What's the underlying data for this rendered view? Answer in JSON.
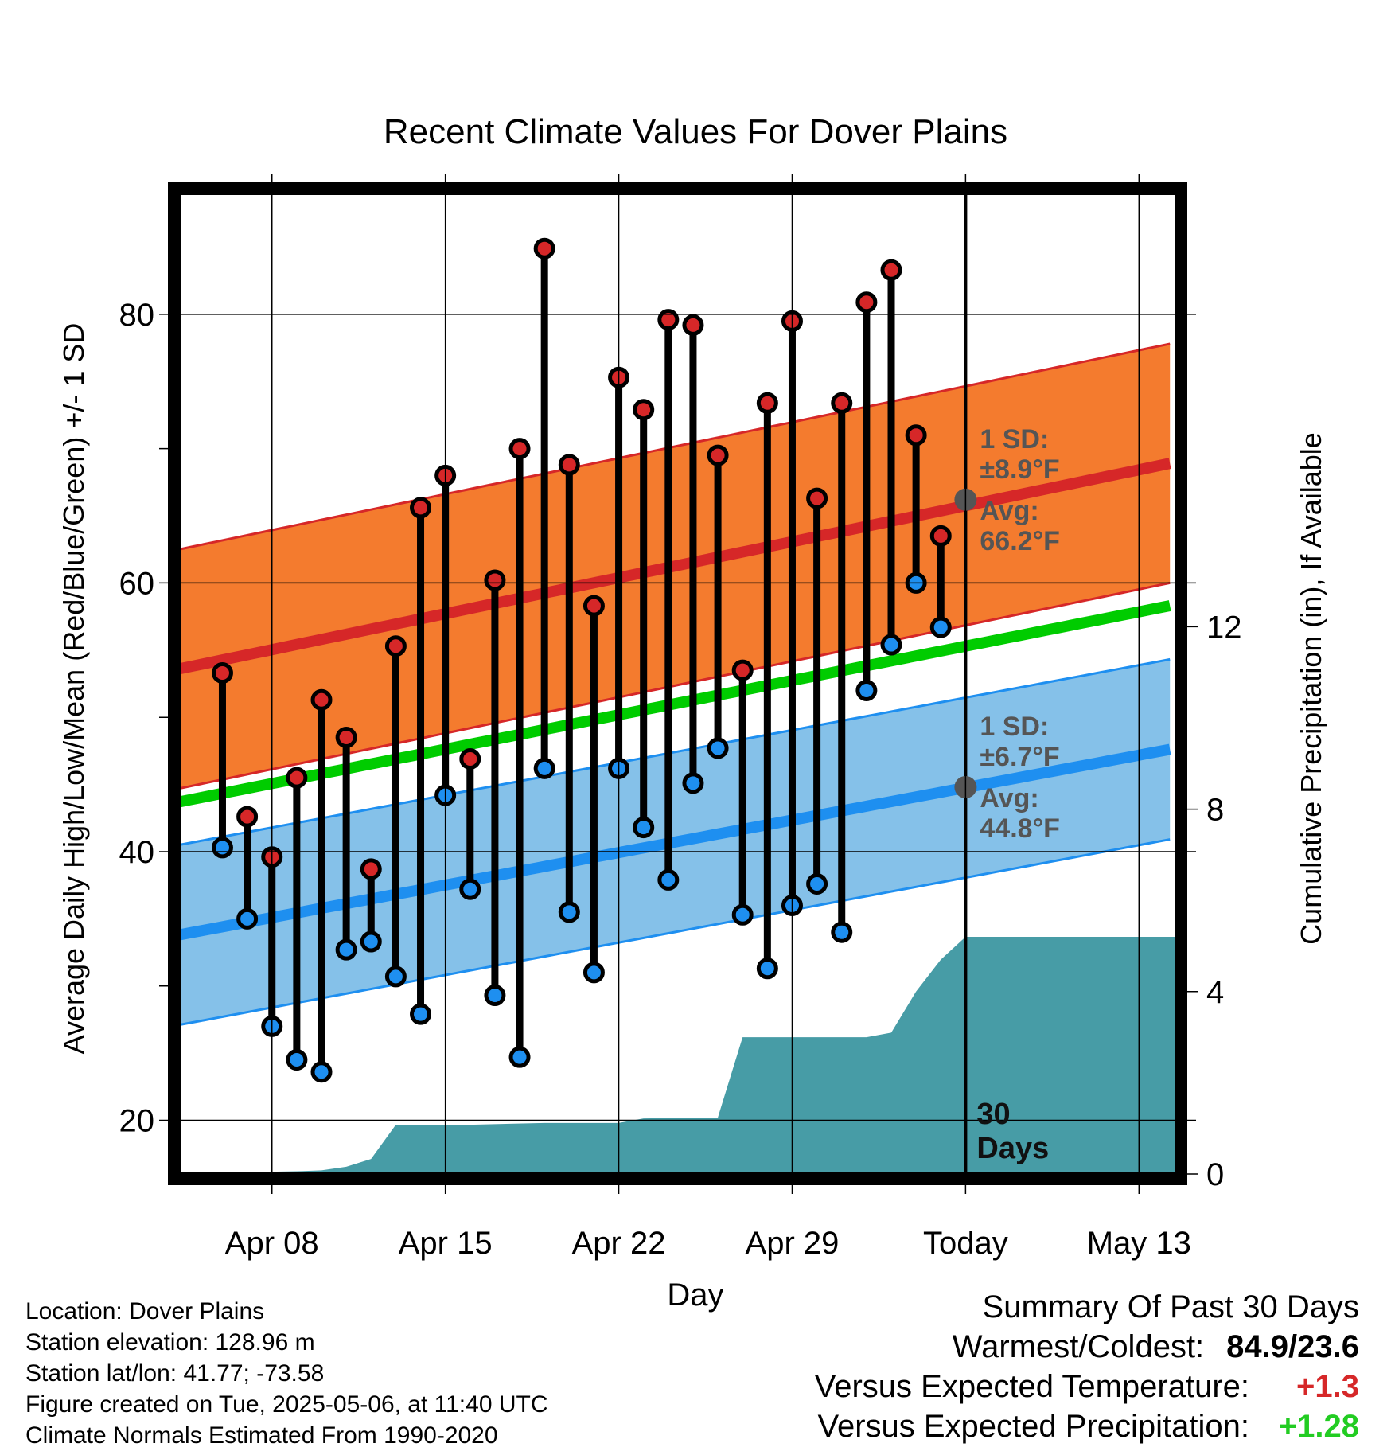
{
  "chart_data": {
    "type": "line",
    "title": "Recent Climate Values For Dover Plains",
    "xlabel": "Day",
    "ylabel": "Average Daily High/Low/Mean (Red/Blue/Green) +/- 1 SD",
    "y2label": "Cumulative Precipitation (in), If Available",
    "x_tick_labels": [
      "Apr 08",
      "Apr 15",
      "Apr 22",
      "Apr 29",
      "Today",
      "May 13"
    ],
    "x_tick_days": [
      2,
      9,
      16,
      23,
      30,
      37
    ],
    "x_range_days": [
      -1.75,
      38.5
    ],
    "today_day": 30,
    "ylim": [
      16,
      89
    ],
    "y_ticks": [
      20,
      40,
      60,
      80
    ],
    "y_minor_ticks": [
      30,
      50,
      70
    ],
    "y2lim": [
      0,
      21.5
    ],
    "y2_ticks": [
      0,
      4,
      8,
      12
    ],
    "grid": true,
    "daily_high": [
      53.3,
      42.6,
      39.6,
      45.5,
      51.3,
      48.5,
      38.7,
      55.3,
      65.6,
      68.0,
      46.9,
      60.2,
      70.0,
      84.9,
      68.8,
      58.3,
      75.3,
      72.9,
      79.6,
      79.2,
      69.5,
      53.5,
      73.4,
      79.5,
      66.3,
      73.4,
      80.9,
      83.3,
      71.0,
      63.5
    ],
    "daily_low": [
      40.3,
      35.0,
      27.0,
      24.5,
      23.6,
      32.7,
      33.3,
      30.7,
      27.9,
      44.2,
      37.2,
      29.3,
      24.7,
      46.2,
      35.5,
      31.0,
      46.2,
      41.8,
      37.9,
      45.1,
      47.7,
      35.3,
      31.3,
      36.0,
      37.6,
      34.0,
      52.0,
      55.4,
      60.0,
      56.7
    ],
    "normal_high": {
      "start": 53.6,
      "end": 69.0,
      "sd": 8.9
    },
    "normal_low": {
      "start": 33.8,
      "end": 47.7,
      "sd": 6.7
    },
    "normal_mean": {
      "start": 43.7,
      "end": 58.4
    },
    "cumulative_precip": [
      [
        -1.75,
        0.0
      ],
      [
        2.0,
        0.05
      ],
      [
        3.0,
        0.06
      ],
      [
        4.0,
        0.08
      ],
      [
        5.0,
        0.16
      ],
      [
        6.0,
        0.33
      ],
      [
        7.0,
        1.08
      ],
      [
        10.0,
        1.08
      ],
      [
        13.0,
        1.12
      ],
      [
        16.0,
        1.12
      ],
      [
        17.0,
        1.22
      ],
      [
        20.0,
        1.24
      ],
      [
        21.0,
        3.0
      ],
      [
        24.0,
        3.0
      ],
      [
        26.0,
        3.0
      ],
      [
        27.0,
        3.1
      ],
      [
        28.0,
        4.0
      ],
      [
        29.0,
        4.7
      ],
      [
        30.0,
        5.2
      ],
      [
        38.5,
        5.2
      ]
    ],
    "annotations": {
      "high_sd_line1": "1 SD:",
      "high_sd_line2": "±8.9°F",
      "high_avg_line1": "Avg:",
      "high_avg_line2": "66.2°F",
      "low_sd_line1": "1 SD:",
      "low_sd_line2": "±6.7°F",
      "low_avg_line1": "Avg:",
      "low_avg_line2": "44.8°F",
      "today_avg_high": 66.2,
      "today_avg_low": 44.8,
      "days_line1": "30",
      "days_line2": "Days"
    },
    "colors": {
      "high_band": "#f47b2e",
      "high_line": "#d62728",
      "low_band": "#85c1e9",
      "low_line": "#1e8ff0",
      "mean_line": "#00cc00",
      "precip": "#479ca6",
      "high_marker": "#d62728",
      "low_marker": "#1e8ff0",
      "avg_marker": "#555555"
    }
  },
  "info": {
    "location": "Location: Dover Plains",
    "elevation": "Station elevation: 128.96 m",
    "latlon": "Station lat/lon: 41.77; -73.58",
    "created": "Figure created on Tue, 2025-05-06, at 11:40 UTC",
    "normals": "Climate Normals Estimated From 1990-2020"
  },
  "summary": {
    "title": "Summary Of Past 30 Days",
    "warm_cold_label": "Warmest/Coldest:",
    "warm_cold_value": "84.9/23.6",
    "temp_label": "Versus Expected Temperature:",
    "temp_value": "+1.3",
    "temp_color": "#d62728",
    "precip_label": "Versus Expected Precipitation:",
    "precip_value": "+1.28",
    "precip_color": "#22cc22"
  }
}
